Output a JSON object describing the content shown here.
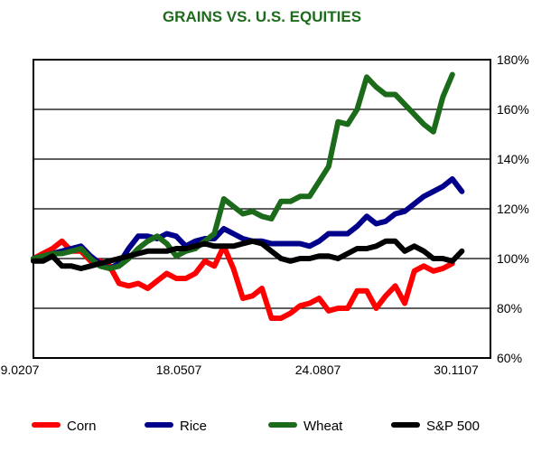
{
  "chart_data": {
    "type": "line",
    "title": "GRAINS VS. U.S. EQUITIES",
    "xlabel": "",
    "ylabel": "",
    "x_ticks": [
      "9.0207",
      "18.0507",
      "24.0807",
      "30.1107"
    ],
    "y_ticks": [
      "180%",
      "160%",
      "140%",
      "120%",
      "100%",
      "80%",
      "60%"
    ],
    "ylim": [
      60,
      180
    ],
    "y_unit": "%",
    "grid": "horizontal",
    "legend_placement": "bottom",
    "x_count": 49,
    "series": [
      {
        "name": "Corn",
        "color": "#ff0000",
        "values": [
          100,
          102,
          104,
          107,
          103,
          103,
          99,
          99,
          97,
          90,
          89,
          90,
          88,
          91,
          94,
          92,
          92,
          94,
          99,
          97,
          105,
          96,
          84,
          85,
          88,
          76,
          76,
          78,
          81,
          82,
          84,
          79,
          80,
          80,
          87,
          87,
          80,
          85,
          89,
          82,
          95,
          97,
          95,
          96,
          98
        ]
      },
      {
        "name": "Rice",
        "color": "#00008b",
        "values": [
          100,
          101,
          102,
          103,
          104,
          105,
          101,
          98,
          96,
          98,
          104,
          109,
          109,
          108,
          110,
          109,
          105,
          107,
          108,
          108,
          112,
          110,
          108,
          107,
          107,
          106,
          106,
          106,
          106,
          105,
          107,
          110,
          110,
          110,
          113,
          117,
          114,
          115,
          118,
          119,
          122,
          125,
          127,
          129,
          132,
          127
        ]
      },
      {
        "name": "Wheat",
        "color": "#1b6b1b",
        "values": [
          100,
          101,
          102,
          102,
          103,
          104,
          100,
          97,
          96,
          97,
          100,
          104,
          107,
          109,
          106,
          101,
          103,
          104,
          107,
          110,
          124,
          121,
          118,
          119,
          117,
          116,
          123,
          123,
          125,
          125,
          131,
          137,
          155,
          154,
          160,
          173,
          169,
          166,
          166,
          162,
          158,
          154,
          151,
          165,
          174
        ]
      },
      {
        "name": "S&P 500",
        "color": "#000000",
        "values": [
          99,
          99,
          101,
          97,
          97,
          96,
          97,
          98,
          99,
          100,
          101,
          102,
          103,
          103,
          103,
          104,
          104,
          105,
          106,
          105,
          105,
          105,
          106,
          107,
          106,
          103,
          100,
          99,
          100,
          100,
          101,
          101,
          100,
          102,
          104,
          104,
          105,
          107,
          107,
          103,
          105,
          103,
          100,
          100,
          99,
          103
        ]
      }
    ]
  }
}
